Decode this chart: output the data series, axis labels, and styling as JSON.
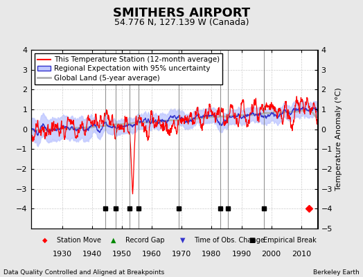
{
  "title": "SMITHERS AIRPORT",
  "subtitle": "54.776 N, 127.139 W (Canada)",
  "ylabel": "Temperature Anomaly (°C)",
  "xlabel_left": "Data Quality Controlled and Aligned at Breakpoints",
  "xlabel_right": "Berkeley Earth",
  "ylim": [
    -5,
    4
  ],
  "xlim": [
    1919.5,
    2015.5
  ],
  "xticks": [
    1930,
    1940,
    1950,
    1960,
    1970,
    1980,
    1990,
    2000,
    2010
  ],
  "yticks_left": [
    -4,
    -3,
    -2,
    -1,
    0,
    1,
    2,
    3,
    4
  ],
  "yticks_right": [
    -5,
    -4,
    -3,
    -2,
    -1,
    0,
    1,
    2,
    3,
    4
  ],
  "bg_color": "#e8e8e8",
  "plot_bg_color": "#ffffff",
  "grid_color": "#cccccc",
  "station_color": "#ff0000",
  "regional_color": "#3333cc",
  "regional_fill_color": "#c0c8ff",
  "global_color": "#b0b0b0",
  "title_fontsize": 13,
  "subtitle_fontsize": 9,
  "tick_fontsize": 8,
  "label_fontsize": 8,
  "legend_fontsize": 7.5,
  "empirical_breaks": [
    1944.5,
    1948.0,
    1952.5,
    1955.5,
    1969.0,
    1983.0,
    1985.5,
    1997.5
  ],
  "vline_color": "#888888",
  "marker_y": -4.0,
  "empirical_break_markers": [
    1944.5,
    1948.0,
    1952.5,
    1955.5,
    1969.0,
    1983.0,
    1985.5,
    1997.5
  ],
  "station_move_markers": [
    2012.5
  ],
  "time_obs_change_markers": []
}
